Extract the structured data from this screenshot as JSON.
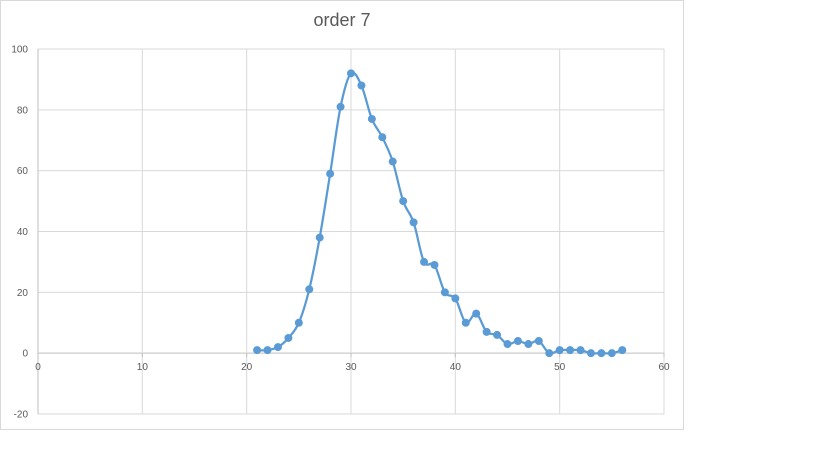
{
  "chart_data": {
    "type": "scatter",
    "title": "order 7",
    "xlabel": "",
    "ylabel": "",
    "xlim": [
      0,
      60
    ],
    "ylim": [
      -20,
      100
    ],
    "xticks": [
      0,
      10,
      20,
      30,
      40,
      50,
      60
    ],
    "yticks": [
      -20,
      0,
      20,
      40,
      60,
      80,
      100
    ],
    "grid": true,
    "line_style": "smooth-with-markers",
    "colors": {
      "series": "#5b9bd5",
      "grid": "#d9d9d9",
      "axis": "#bfbfbf",
      "text": "#595959"
    },
    "series": [
      {
        "x": [
          21,
          22,
          23,
          24,
          25,
          26,
          27,
          28,
          29,
          30,
          31,
          32,
          33,
          34,
          35,
          36,
          37,
          38,
          39,
          40,
          41,
          42,
          43,
          44,
          45,
          46,
          47,
          48,
          49,
          50,
          51,
          52,
          53,
          54,
          55,
          56
        ],
        "values": [
          1,
          1,
          2,
          5,
          10,
          21,
          38,
          59,
          81,
          92,
          88,
          77,
          71,
          63,
          50,
          43,
          30,
          29,
          20,
          18,
          10,
          13,
          7,
          6,
          3,
          4,
          3,
          4,
          0,
          1,
          1,
          1,
          0,
          0,
          0,
          1
        ]
      }
    ]
  }
}
